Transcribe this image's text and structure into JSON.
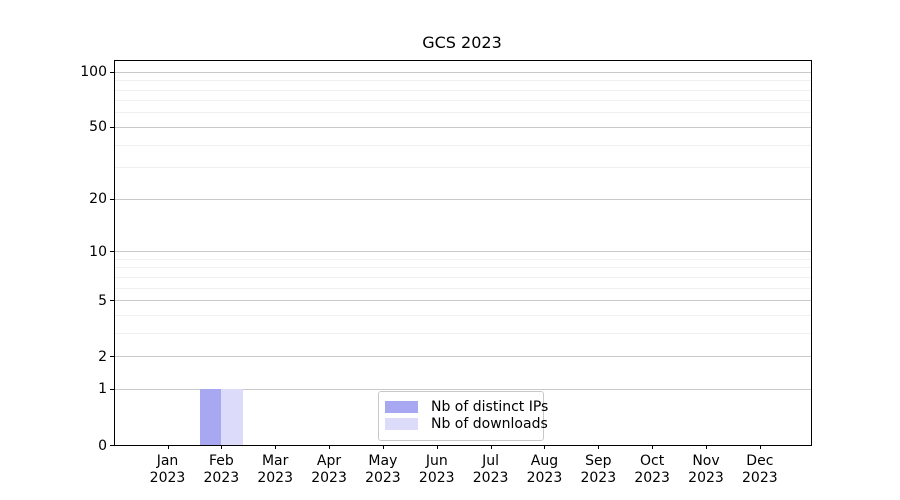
{
  "chart_data": {
    "type": "bar",
    "title": "GCS 2023",
    "categories": [
      "Jan 2023",
      "Feb 2023",
      "Mar 2023",
      "Apr 2023",
      "May 2023",
      "Jun 2023",
      "Jul 2023",
      "Aug 2023",
      "Sep 2023",
      "Oct 2023",
      "Nov 2023",
      "Dec 2023"
    ],
    "series": [
      {
        "name": "Nb of distinct IPs",
        "color": "#a8a8f2",
        "values": [
          0,
          1,
          0,
          0,
          0,
          0,
          0,
          0,
          0,
          0,
          0,
          0
        ]
      },
      {
        "name": "Nb of downloads",
        "color": "#dcdcfa",
        "values": [
          0,
          1,
          0,
          0,
          0,
          0,
          0,
          0,
          0,
          0,
          0,
          0
        ]
      }
    ],
    "xlabel": "",
    "ylabel": "",
    "yscale": "log1p",
    "ylim": [
      0,
      115
    ],
    "yticks": [
      0,
      1,
      2,
      5,
      10,
      20,
      50,
      100
    ],
    "yticks_minor": [
      3,
      4,
      6,
      7,
      8,
      9,
      30,
      40,
      60,
      70,
      80,
      90
    ],
    "grid": "on",
    "legend_position": "lower center inside plot",
    "colors": {
      "background": "#ffffff",
      "axis": "#000000",
      "major_grid": "#c9c9c9",
      "minor_grid": "#f0f0f0",
      "legend_border": "#c8c8c8"
    }
  }
}
